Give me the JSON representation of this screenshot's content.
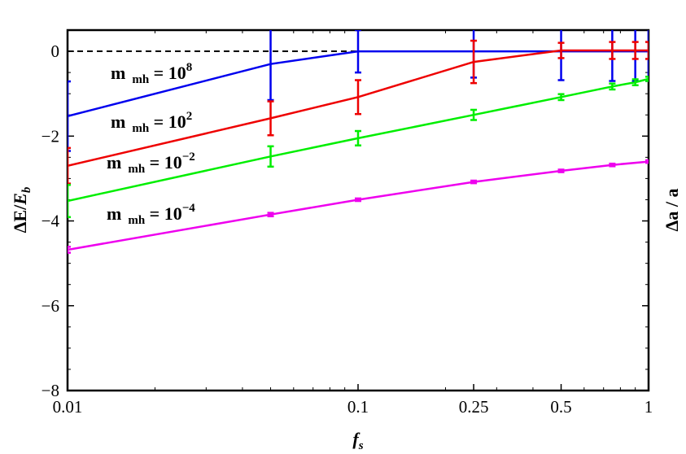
{
  "chart_data": {
    "type": "line",
    "x_scale": "log",
    "xlim": [
      0.01,
      1
    ],
    "ylim": [
      -8,
      0.5
    ],
    "x_ticks": [
      {
        "value": 0.01,
        "label": "0.01"
      },
      {
        "value": 0.1,
        "label": "0.1"
      },
      {
        "value": 0.25,
        "label": "0.25"
      },
      {
        "value": 0.5,
        "label": "0.5"
      },
      {
        "value": 1,
        "label": "1"
      }
    ],
    "y_ticks": [
      {
        "value": 0,
        "label": "0"
      },
      {
        "value": -2,
        "label": "−2"
      },
      {
        "value": -4,
        "label": "−4"
      },
      {
        "value": -6,
        "label": "−6"
      },
      {
        "value": -8,
        "label": "−8"
      }
    ],
    "xlabel": {
      "main": "f",
      "sub": "s"
    },
    "ylabel": {
      "main": "ΔE/",
      "italic": "E",
      "sub": "b"
    },
    "ylabel_right": "Δa / a",
    "reference_line": {
      "y": 0,
      "style": "dashed",
      "color": "#000000"
    },
    "series": [
      {
        "name": "m_mh = 10^8",
        "label": {
          "m": "m",
          "sub": "mh",
          "eq": " = 10",
          "sup": "8"
        },
        "color": "#0000ee",
        "points": [
          {
            "x": 0.01,
            "y": -1.53,
            "err": 0.82
          },
          {
            "x": 0.05,
            "y": -0.3,
            "err": 0.85
          },
          {
            "x": 0.1,
            "y": 0.0,
            "err": 0.5
          },
          {
            "x": 0.25,
            "y": 0.0,
            "err": 0.62
          },
          {
            "x": 0.5,
            "y": 0.0,
            "err": 0.68
          },
          {
            "x": 0.75,
            "y": 0.0,
            "err": 0.7
          },
          {
            "x": 0.9,
            "y": 0.0,
            "err": 0.7
          },
          {
            "x": 1.0,
            "y": 0.0,
            "err": 0.7
          }
        ]
      },
      {
        "name": "m_mh = 10^2",
        "label": {
          "m": "m",
          "sub": "mh",
          "eq": " = 10",
          "sup": "2"
        },
        "color": "#ee0000",
        "points": [
          {
            "x": 0.01,
            "y": -2.7,
            "err": 0.42
          },
          {
            "x": 0.05,
            "y": -1.58,
            "err": 0.4
          },
          {
            "x": 0.1,
            "y": -1.08,
            "err": 0.4
          },
          {
            "x": 0.25,
            "y": -0.25,
            "err": 0.5
          },
          {
            "x": 0.5,
            "y": 0.02,
            "err": 0.18
          },
          {
            "x": 0.75,
            "y": 0.02,
            "err": 0.2
          },
          {
            "x": 0.9,
            "y": 0.02,
            "err": 0.2
          },
          {
            "x": 1.0,
            "y": 0.02,
            "err": 0.2
          }
        ]
      },
      {
        "name": "m_mh = 10^-2",
        "label": {
          "m": "m",
          "sub": "mh",
          "eq": " = 10",
          "sup": "−2"
        },
        "color": "#00ee00",
        "points": [
          {
            "x": 0.01,
            "y": -3.53,
            "err": 0.38
          },
          {
            "x": 0.05,
            "y": -2.48,
            "err": 0.24
          },
          {
            "x": 0.1,
            "y": -2.05,
            "err": 0.17
          },
          {
            "x": 0.25,
            "y": -1.5,
            "err": 0.12
          },
          {
            "x": 0.5,
            "y": -1.08,
            "err": 0.07
          },
          {
            "x": 0.75,
            "y": -0.83,
            "err": 0.07
          },
          {
            "x": 0.9,
            "y": -0.73,
            "err": 0.07
          },
          {
            "x": 1.0,
            "y": -0.65,
            "err": 0.05
          }
        ]
      },
      {
        "name": "m_mh = 10^-4",
        "label": {
          "m": "m",
          "sub": "mh",
          "eq": " = 10",
          "sup": "−4"
        },
        "color": "#ee00ee",
        "points": [
          {
            "x": 0.01,
            "y": -4.68,
            "err": 0.07
          },
          {
            "x": 0.05,
            "y": -3.85,
            "err": 0.04
          },
          {
            "x": 0.1,
            "y": -3.5,
            "err": 0.03
          },
          {
            "x": 0.25,
            "y": -3.08,
            "err": 0.03
          },
          {
            "x": 0.5,
            "y": -2.82,
            "err": 0.03
          },
          {
            "x": 0.75,
            "y": -2.68,
            "err": 0.03
          },
          {
            "x": 1.0,
            "y": -2.6,
            "err": 0.03
          }
        ]
      }
    ]
  }
}
